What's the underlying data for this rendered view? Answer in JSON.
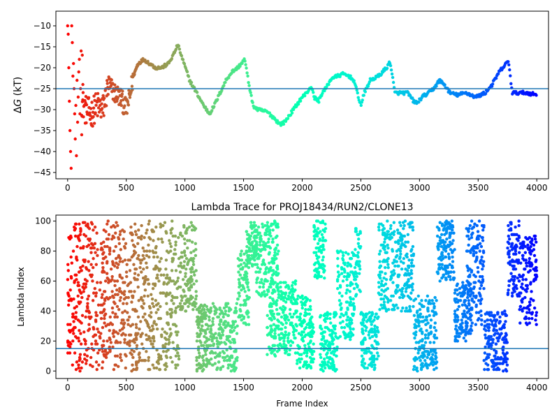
{
  "chart_data": [
    {
      "type": "scatter",
      "title": "",
      "xlabel": "",
      "ylabel_prefix": "Δ",
      "ylabel_var": "G",
      "ylabel_suffix": " (kT)",
      "xlim": [
        -100,
        4100
      ],
      "ylim": [
        -46.5,
        -6.5
      ],
      "xticks": [
        0,
        500,
        1000,
        1500,
        2000,
        2500,
        3000,
        3500,
        4000
      ],
      "xtick_labels": [
        "0",
        "500",
        "1000",
        "1500",
        "2000",
        "2500",
        "3000",
        "3500",
        "4000"
      ],
      "yticks": [
        -45,
        -40,
        -35,
        -30,
        -25,
        -20,
        -15,
        -10
      ],
      "ytick_labels": [
        "−45",
        "−40",
        "−35",
        "−30",
        "−25",
        "−20",
        "−15",
        "−10"
      ],
      "hline": -25,
      "hline_color": "#1f77b4",
      "colormap": "rainbow (reversed: red at frame 0, violet at frame 4000)",
      "series_keypoints": [
        [
          120,
          -28
        ],
        [
          150,
          -30
        ],
        [
          200,
          -31
        ],
        [
          250,
          -29
        ],
        [
          300,
          -30
        ],
        [
          350,
          -24
        ],
        [
          400,
          -26
        ],
        [
          450,
          -27
        ],
        [
          500,
          -30
        ],
        [
          530,
          -27
        ],
        [
          560,
          -22
        ],
        [
          600,
          -19
        ],
        [
          650,
          -18
        ],
        [
          700,
          -19
        ],
        [
          750,
          -20
        ],
        [
          800,
          -20
        ],
        [
          860,
          -19
        ],
        [
          900,
          -17
        ],
        [
          940,
          -14.5
        ],
        [
          980,
          -18
        ],
        [
          1040,
          -23
        ],
        [
          1100,
          -26
        ],
        [
          1160,
          -29
        ],
        [
          1210,
          -31
        ],
        [
          1250,
          -29
        ],
        [
          1300,
          -26
        ],
        [
          1350,
          -23
        ],
        [
          1400,
          -21
        ],
        [
          1450,
          -20
        ],
        [
          1510,
          -18
        ],
        [
          1540,
          -23
        ],
        [
          1580,
          -29
        ],
        [
          1620,
          -30
        ],
        [
          1700,
          -30.5
        ],
        [
          1760,
          -32
        ],
        [
          1810,
          -33.5
        ],
        [
          1850,
          -33
        ],
        [
          1900,
          -31
        ],
        [
          1950,
          -29
        ],
        [
          2000,
          -27
        ],
        [
          2040,
          -26
        ],
        [
          2060,
          -25
        ],
        [
          2080,
          -24.5
        ],
        [
          2100,
          -27
        ],
        [
          2140,
          -28
        ],
        [
          2170,
          -26
        ],
        [
          2200,
          -25
        ],
        [
          2250,
          -22.5
        ],
        [
          2300,
          -22
        ],
        [
          2350,
          -21.5
        ],
        [
          2400,
          -22
        ],
        [
          2440,
          -23
        ],
        [
          2480,
          -27
        ],
        [
          2500,
          -29
        ],
        [
          2530,
          -26
        ],
        [
          2580,
          -23
        ],
        [
          2650,
          -22
        ],
        [
          2720,
          -20
        ],
        [
          2750,
          -18.5
        ],
        [
          2790,
          -26
        ],
        [
          2850,
          -26
        ],
        [
          2900,
          -26
        ],
        [
          2950,
          -28
        ],
        [
          2980,
          -28.5
        ],
        [
          3020,
          -27
        ],
        [
          3080,
          -26
        ],
        [
          3120,
          -25
        ],
        [
          3170,
          -23
        ],
        [
          3210,
          -24
        ],
        [
          3260,
          -26
        ],
        [
          3320,
          -26.5
        ],
        [
          3400,
          -26
        ],
        [
          3480,
          -27
        ],
        [
          3560,
          -26
        ],
        [
          3620,
          -24
        ],
        [
          3680,
          -21
        ],
        [
          3740,
          -19
        ],
        [
          3760,
          -18.5
        ],
        [
          3790,
          -26
        ],
        [
          3850,
          -26
        ],
        [
          3920,
          -26
        ],
        [
          4000,
          -26.5
        ]
      ],
      "early_scatter_points": [
        [
          0,
          -10
        ],
        [
          5,
          -12
        ],
        [
          10,
          -20
        ],
        [
          15,
          -28
        ],
        [
          20,
          -35
        ],
        [
          25,
          -40
        ],
        [
          30,
          -44
        ],
        [
          35,
          -10
        ],
        [
          40,
          -14
        ],
        [
          45,
          -22
        ],
        [
          50,
          -19
        ],
        [
          55,
          -25
        ],
        [
          60,
          -31
        ],
        [
          65,
          -37
        ],
        [
          70,
          -29
        ],
        [
          75,
          -41
        ],
        [
          80,
          -23
        ],
        [
          85,
          -33
        ],
        [
          90,
          -27
        ],
        [
          95,
          -21
        ],
        [
          100,
          -18
        ],
        [
          105,
          -31
        ],
        [
          110,
          -25
        ],
        [
          115,
          -16
        ],
        [
          120,
          -36
        ],
        [
          125,
          -17
        ],
        [
          130,
          -24
        ]
      ]
    },
    {
      "type": "scatter",
      "title": "Lambda Trace for PROJ18434/RUN2/CLONE13",
      "xlabel": "Frame Index",
      "ylabel": "Lambda Index",
      "xlim": [
        -100,
        4100
      ],
      "ylim": [
        -5,
        104
      ],
      "xticks": [
        0,
        500,
        1000,
        1500,
        2000,
        2500,
        3000,
        3500,
        4000
      ],
      "xtick_labels": [
        "0",
        "500",
        "1000",
        "1500",
        "2000",
        "2500",
        "3000",
        "3500",
        "4000"
      ],
      "yticks": [
        0,
        20,
        40,
        60,
        80,
        100
      ],
      "ytick_labels": [
        "0",
        "20",
        "40",
        "60",
        "80",
        "100"
      ],
      "hline": 15,
      "hline_color": "#1f77b4",
      "colormap": "rainbow (reversed: red at frame 0, violet at frame 4000)",
      "frames": 4000,
      "visits": [
        [
          0,
          100,
          0,
          100
        ],
        [
          100,
          950,
          0,
          100
        ],
        [
          960,
          1100,
          40,
          100
        ],
        [
          1100,
          1450,
          0,
          45
        ],
        [
          1450,
          1550,
          30,
          80
        ],
        [
          1520,
          1620,
          70,
          100
        ],
        [
          1600,
          1800,
          50,
          100
        ],
        [
          1700,
          1950,
          10,
          60
        ],
        [
          1950,
          2100,
          0,
          50
        ],
        [
          2100,
          2200,
          60,
          100
        ],
        [
          2150,
          2300,
          0,
          40
        ],
        [
          2300,
          2450,
          20,
          80
        ],
        [
          2450,
          2500,
          50,
          100
        ],
        [
          2500,
          2650,
          0,
          40
        ],
        [
          2650,
          2800,
          40,
          100
        ],
        [
          2800,
          2950,
          40,
          100
        ],
        [
          2950,
          3150,
          0,
          50
        ],
        [
          3150,
          3300,
          60,
          100
        ],
        [
          3300,
          3450,
          20,
          60
        ],
        [
          3400,
          3550,
          30,
          100
        ],
        [
          3550,
          3750,
          0,
          40
        ],
        [
          3750,
          3850,
          50,
          100
        ],
        [
          3850,
          4000,
          30,
          90
        ]
      ]
    }
  ]
}
